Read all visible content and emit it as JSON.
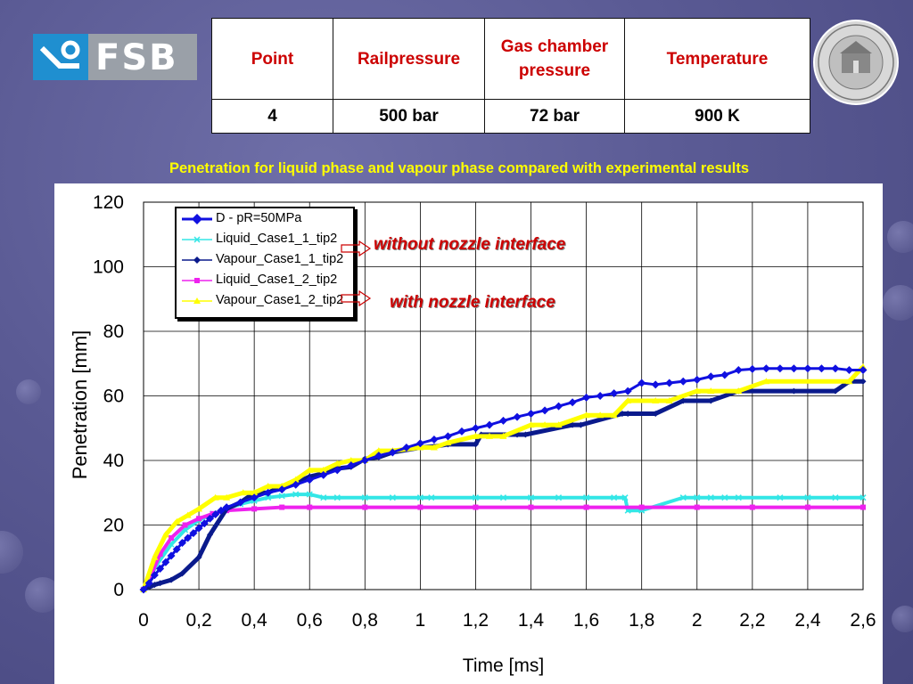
{
  "logo": {
    "text": "FSB"
  },
  "table": {
    "headers": [
      "Point",
      "Railpressure",
      "Gas chamber pressure",
      "Temperature"
    ],
    "row": [
      "4",
      "500 bar",
      "72 bar",
      "900 K"
    ]
  },
  "subtitle": "Penetration for liquid phase and vapour phase compared with experimental  results",
  "annotations": {
    "without": "without nozzle interface",
    "with": "with nozzle interface"
  },
  "chart_data": {
    "type": "line",
    "title": "",
    "xlabel": "Time [ms]",
    "ylabel": "Penetration [mm]",
    "xlim": [
      0,
      2.6
    ],
    "ylim": [
      0,
      120
    ],
    "xticks": [
      "0",
      "0,2",
      "0,4",
      "0,6",
      "0,8",
      "1",
      "1,2",
      "1,4",
      "1,6",
      "1,8",
      "2",
      "2,2",
      "2,4",
      "2,6"
    ],
    "yticks": [
      "0",
      "20",
      "40",
      "60",
      "80",
      "100",
      "120"
    ],
    "grid": true,
    "legend_position": "top-left",
    "series": [
      {
        "name": "D - pR=50MPa",
        "color": "#1010e0",
        "marker": "diamond",
        "x": [
          0,
          0.02,
          0.04,
          0.06,
          0.08,
          0.1,
          0.12,
          0.14,
          0.16,
          0.18,
          0.2,
          0.22,
          0.24,
          0.26,
          0.28,
          0.3,
          0.35,
          0.4,
          0.45,
          0.5,
          0.55,
          0.6,
          0.65,
          0.7,
          0.75,
          0.8,
          0.85,
          0.9,
          0.95,
          1.0,
          1.05,
          1.1,
          1.15,
          1.2,
          1.25,
          1.3,
          1.35,
          1.4,
          1.45,
          1.5,
          1.55,
          1.6,
          1.65,
          1.7,
          1.75,
          1.8,
          1.85,
          1.9,
          1.95,
          2.0,
          2.05,
          2.1,
          2.15,
          2.2,
          2.25,
          2.3,
          2.35,
          2.4,
          2.45,
          2.5,
          2.55,
          2.6
        ],
        "y": [
          0,
          2,
          4.5,
          6.5,
          8.5,
          10.5,
          12.5,
          14.5,
          16,
          17.5,
          19,
          20.5,
          22,
          23.3,
          24.5,
          25.5,
          27,
          28.5,
          30,
          31,
          32.5,
          34,
          35.5,
          37,
          38.5,
          40,
          41.5,
          42.5,
          44,
          45.3,
          46.5,
          47.5,
          49,
          50,
          51,
          52.3,
          53.5,
          54.5,
          55.5,
          56.8,
          58,
          59.5,
          60,
          60.8,
          61.5,
          64,
          63.5,
          64,
          64.5,
          65,
          66,
          66.5,
          68,
          68.3,
          68.5,
          68.5,
          68.5,
          68.5,
          68.5,
          68.5,
          68,
          68
        ]
      },
      {
        "name": "Liquid_Case1_1_tip2",
        "color": "#33e6e6",
        "marker": "x",
        "x": [
          0,
          0.05,
          0.1,
          0.15,
          0.2,
          0.25,
          0.3,
          0.35,
          0.4,
          0.45,
          0.5,
          0.55,
          0.6,
          0.65,
          0.7,
          0.8,
          0.9,
          1.0,
          1.04,
          1.2,
          1.3,
          1.4,
          1.5,
          1.6,
          1.7,
          1.74,
          1.75,
          1.8,
          1.95,
          2.0,
          2.05,
          2.1,
          2.15,
          2.3,
          2.4,
          2.5,
          2.6
        ],
        "y": [
          0,
          8,
          14,
          18.5,
          21.5,
          23.5,
          25,
          26.5,
          27.5,
          28.5,
          29,
          29.5,
          29.5,
          28.5,
          28.5,
          28.5,
          28.5,
          28.5,
          28.5,
          28.5,
          28.5,
          28.5,
          28.5,
          28.5,
          28.5,
          28.5,
          24.5,
          24.5,
          28.5,
          28.5,
          28.5,
          28.5,
          28.5,
          28.5,
          28.5,
          28.5,
          28.5
        ]
      },
      {
        "name": "Vapour_Case1_1_tip2",
        "color": "#0a1a8c",
        "marker": "diamond",
        "x": [
          0,
          0.04,
          0.06,
          0.1,
          0.14,
          0.2,
          0.24,
          0.3,
          0.35,
          0.4,
          0.45,
          0.5,
          0.55,
          0.6,
          0.65,
          0.7,
          0.75,
          0.8,
          0.85,
          0.9,
          1.0,
          1.05,
          1.1,
          1.2,
          1.22,
          1.35,
          1.38,
          1.55,
          1.58,
          1.73,
          1.75,
          1.85,
          1.95,
          2.05,
          2.15,
          2.35,
          2.5,
          2.55,
          2.6
        ],
        "y": [
          0,
          1.5,
          2,
          3,
          5,
          10,
          17,
          25,
          27,
          30,
          30,
          32,
          33,
          35,
          36,
          37.5,
          38,
          40.5,
          41,
          42.5,
          44,
          44.3,
          45,
          45,
          48,
          48,
          48,
          51,
          51,
          54.5,
          54.5,
          54.5,
          58.5,
          58.5,
          61.5,
          61.5,
          61.5,
          64.5,
          64.5
        ]
      },
      {
        "name": "Liquid_Case1_2_tip2",
        "color": "#ee22ee",
        "marker": "square",
        "x": [
          0,
          0.03,
          0.06,
          0.1,
          0.15,
          0.2,
          0.25,
          0.3,
          0.4,
          0.5,
          0.6,
          0.8,
          1.0,
          1.2,
          1.4,
          1.6,
          1.8,
          2.0,
          2.2,
          2.4,
          2.6
        ],
        "y": [
          0,
          5,
          11,
          16,
          20,
          22,
          23.5,
          24.5,
          25,
          25.5,
          25.5,
          25.5,
          25.5,
          25.5,
          25.5,
          25.5,
          25.5,
          25.5,
          25.5,
          25.5,
          25.5
        ]
      },
      {
        "name": "Vapour_Case1_2_tip2",
        "color": "#ffff00",
        "marker": "triangle",
        "x": [
          0,
          0.04,
          0.08,
          0.12,
          0.16,
          0.2,
          0.26,
          0.3,
          0.36,
          0.4,
          0.45,
          0.5,
          0.55,
          0.6,
          0.65,
          0.7,
          0.75,
          0.8,
          0.85,
          0.9,
          1.0,
          1.05,
          1.1,
          1.2,
          1.25,
          1.3,
          1.4,
          1.45,
          1.5,
          1.6,
          1.65,
          1.7,
          1.75,
          1.85,
          1.9,
          2.0,
          2.05,
          2.15,
          2.25,
          2.55,
          2.6
        ],
        "y": [
          0,
          10,
          17,
          21,
          23,
          25,
          28.5,
          28.5,
          30,
          30,
          32,
          32,
          34,
          37,
          37,
          39,
          40,
          40,
          43,
          43,
          44,
          44,
          45.5,
          47.5,
          47.5,
          47.5,
          51,
          51,
          51,
          54,
          54,
          54,
          58.5,
          58.5,
          58.5,
          61.5,
          61.5,
          61.5,
          64.5,
          64.5,
          69
        ]
      }
    ]
  }
}
